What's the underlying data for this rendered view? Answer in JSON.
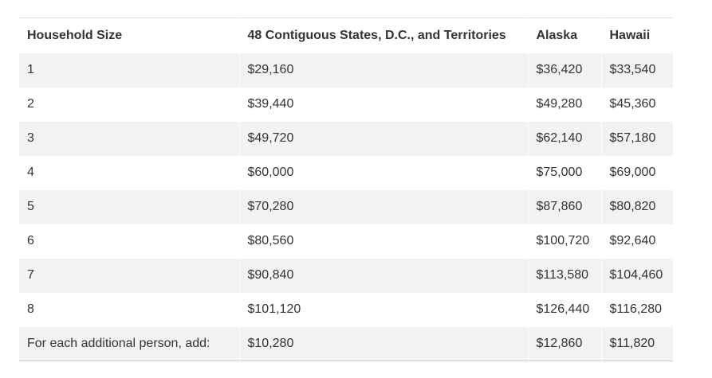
{
  "table": {
    "headers": [
      "Household Size",
      "48 Contiguous States, D.C., and Territories",
      "Alaska",
      "Hawaii"
    ],
    "rows": [
      [
        "1",
        "$29,160",
        "$36,420",
        "$33,540"
      ],
      [
        "2",
        "$39,440",
        "$49,280",
        "$45,360"
      ],
      [
        "3",
        "$49,720",
        "$62,140",
        "$57,180"
      ],
      [
        "4",
        "$60,000",
        "$75,000",
        "$69,000"
      ],
      [
        "5",
        "$70,280",
        "$87,860",
        "$80,820"
      ],
      [
        "6",
        "$80,560",
        "$100,720",
        "$92,640"
      ],
      [
        "7",
        "$90,840",
        "$113,580",
        "$104,460"
      ],
      [
        "8",
        "$101,120",
        "$126,440",
        "$116,280"
      ],
      [
        "For each additional person, add:",
        "$10,280",
        "$12,860",
        "$11,820"
      ]
    ]
  },
  "colors": {
    "stripe": "#f2f2f2",
    "text": "#333333",
    "border": "#dddddd"
  }
}
